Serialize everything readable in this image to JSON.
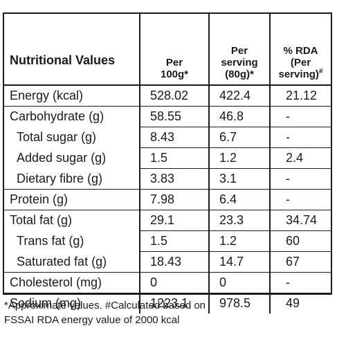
{
  "table": {
    "header": {
      "label": "Nutritional Values",
      "per100": [
        "Per",
        "100g*"
      ],
      "perServing": [
        "Per",
        "serving",
        "(80g)*"
      ],
      "rda": [
        "% RDA",
        "(Per",
        "serving)"
      ],
      "rdaMark": "#"
    },
    "rows": [
      {
        "name": "Energy (kcal)",
        "per100": "528.02",
        "serving": "422.4",
        "rda": "21.12"
      },
      {
        "name": "Carbohydrate (g)",
        "per100": "58.55",
        "serving": "46.8",
        "rda": "-"
      },
      {
        "name": "Total sugar (g)",
        "per100": "8.43",
        "serving": "6.7",
        "rda": "-"
      },
      {
        "name": "Added sugar (g)",
        "per100": "1.5",
        "serving": "1.2",
        "rda": "2.4"
      },
      {
        "name": "Dietary fibre (g)",
        "per100": "3.83",
        "serving": "3.1",
        "rda": "-"
      },
      {
        "name": "Protein (g)",
        "per100": "7.98",
        "serving": "6.4",
        "rda": "-"
      },
      {
        "name": "Total fat (g)",
        "per100": "29.1",
        "serving": "23.3",
        "rda": "34.74"
      },
      {
        "name": "Trans fat (g)",
        "per100": "1.5",
        "serving": "1.2",
        "rda": "60"
      },
      {
        "name": "Saturated fat (g)",
        "per100": "18.43",
        "serving": "14.7",
        "rda": "67"
      },
      {
        "name": "Cholesterol (mg)",
        "per100": "0",
        "serving": "0",
        "rda": "-"
      },
      {
        "name": "Sodium (mg)",
        "per100": "1223.1",
        "serving": "978.5",
        "rda": "49"
      }
    ]
  },
  "footnote": {
    "line1": "*Approximate values. #Calculated based on",
    "line2": "FSSAI RDA energy value of 2000 kcal"
  }
}
